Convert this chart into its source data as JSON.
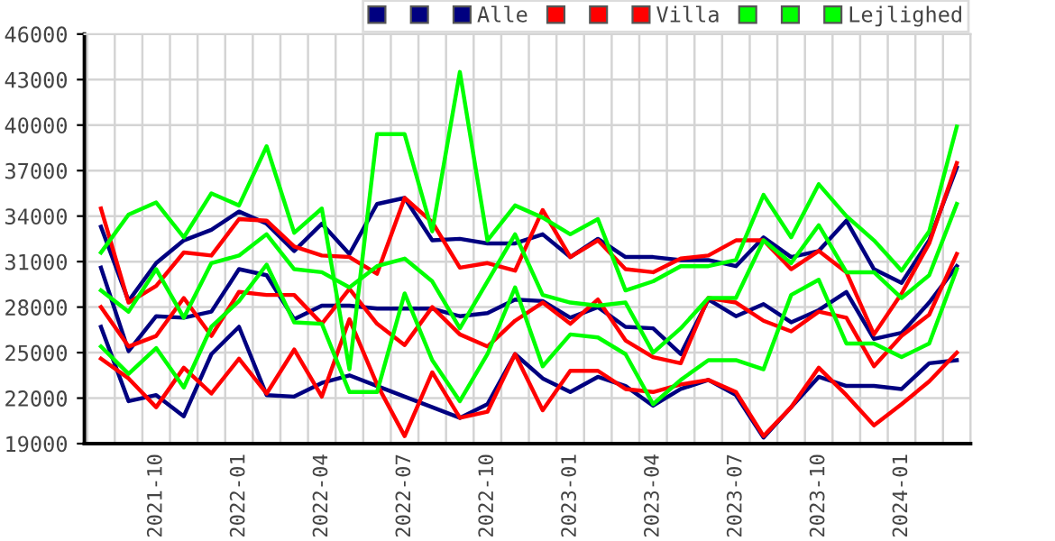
{
  "chart_data": {
    "type": "line",
    "categories": [
      null,
      null,
      "2021-10",
      null,
      null,
      "2022-01",
      null,
      null,
      "2022-04",
      null,
      null,
      "2022-07",
      null,
      null,
      "2022-10",
      null,
      null,
      "2023-01",
      null,
      null,
      "2023-04",
      null,
      null,
      "2023-07",
      null,
      null,
      "2023-10",
      null,
      null,
      "2024-01",
      null,
      null
    ],
    "series": [
      {
        "color": "#000080",
        "values": [
          33300,
          28400,
          30900,
          32400,
          33100,
          34300,
          33500,
          31700,
          33500,
          31500,
          34800,
          35200,
          32400,
          32500,
          32200,
          32200,
          32800,
          31300,
          32500,
          31300,
          31300,
          31100,
          31100,
          30700,
          32600,
          31300,
          31700,
          33700,
          30500,
          29600,
          32400,
          37200
        ]
      },
      {
        "color": "#000080",
        "values": [
          30600,
          25100,
          27400,
          27300,
          27700,
          30500,
          30100,
          27200,
          28100,
          28100,
          27900,
          27900,
          27900,
          27400,
          27600,
          28500,
          28400,
          27300,
          28000,
          26700,
          26600,
          24900,
          28500,
          27400,
          28200,
          27000,
          27800,
          29000,
          25900,
          26300,
          28300,
          30700
        ]
      },
      {
        "name": "Alle",
        "color": "#000080",
        "values": [
          26700,
          21800,
          22200,
          20800,
          24900,
          26700,
          22200,
          22100,
          23000,
          23500,
          22800,
          22100,
          21400,
          20700,
          21600,
          24900,
          23300,
          22400,
          23400,
          22800,
          21500,
          22600,
          23200,
          22200,
          19400,
          21400,
          23400,
          22800,
          22800,
          22600,
          24300,
          24500
        ]
      },
      {
        "color": "#ff0000",
        "values": [
          34500,
          28300,
          29400,
          31600,
          31400,
          33800,
          33700,
          32000,
          31400,
          31300,
          30200,
          35200,
          33600,
          30600,
          30900,
          30400,
          34400,
          31300,
          32400,
          30500,
          30300,
          31200,
          31400,
          32400,
          32400,
          30500,
          31700,
          30300,
          26200,
          28900,
          32200,
          37500
        ]
      },
      {
        "color": "#ff0000",
        "values": [
          28000,
          25400,
          26100,
          28600,
          26100,
          29000,
          28800,
          28800,
          26900,
          29200,
          26900,
          25500,
          28000,
          26200,
          25400,
          27100,
          28300,
          26900,
          28500,
          25800,
          24700,
          24300,
          28600,
          28300,
          27100,
          26400,
          27700,
          27300,
          24100,
          26100,
          27500,
          31500
        ]
      },
      {
        "name": "Villa",
        "color": "#ff0000",
        "values": [
          24600,
          23300,
          21400,
          24000,
          22300,
          24600,
          22300,
          25200,
          22100,
          27200,
          22900,
          19500,
          23700,
          20700,
          21100,
          24900,
          21200,
          23800,
          23800,
          22600,
          22400,
          22900,
          23200,
          22400,
          19500,
          21400,
          24000,
          22200,
          20200,
          21600,
          23100,
          25000
        ]
      },
      {
        "color": "#00ff00",
        "values": [
          31600,
          34100,
          34900,
          32600,
          35500,
          34700,
          38600,
          32900,
          34500,
          23900,
          39400,
          39400,
          33000,
          43500,
          32400,
          34700,
          33900,
          32800,
          33800,
          29100,
          29700,
          30700,
          30700,
          31100,
          35400,
          32600,
          36100,
          34000,
          32400,
          30400,
          33000,
          39900
        ]
      },
      {
        "color": "#00ff00",
        "values": [
          29100,
          27700,
          30500,
          27300,
          30900,
          31400,
          32800,
          30500,
          30300,
          29300,
          30700,
          31200,
          29700,
          26600,
          29700,
          32800,
          28800,
          28300,
          28100,
          28300,
          25000,
          26600,
          28600,
          28600,
          32400,
          30900,
          33400,
          30300,
          30300,
          28600,
          30100,
          34800
        ]
      },
      {
        "name": "Lejlighed",
        "color": "#00ff00",
        "values": [
          25400,
          23600,
          25300,
          22700,
          26700,
          28400,
          30800,
          27000,
          26900,
          22400,
          22400,
          28900,
          24500,
          21800,
          24900,
          29300,
          24100,
          26200,
          26000,
          24900,
          21600,
          23200,
          24500,
          24500,
          23900,
          28800,
          29800,
          25600,
          25600,
          24700,
          25600,
          30500
        ]
      }
    ],
    "ylim": [
      19000,
      46000
    ],
    "yticks": [
      19000,
      22000,
      25000,
      28000,
      31000,
      34000,
      37000,
      40000,
      43000,
      46000
    ],
    "grid": true,
    "legend": "top right",
    "marker": "none",
    "line_style": "solid"
  }
}
